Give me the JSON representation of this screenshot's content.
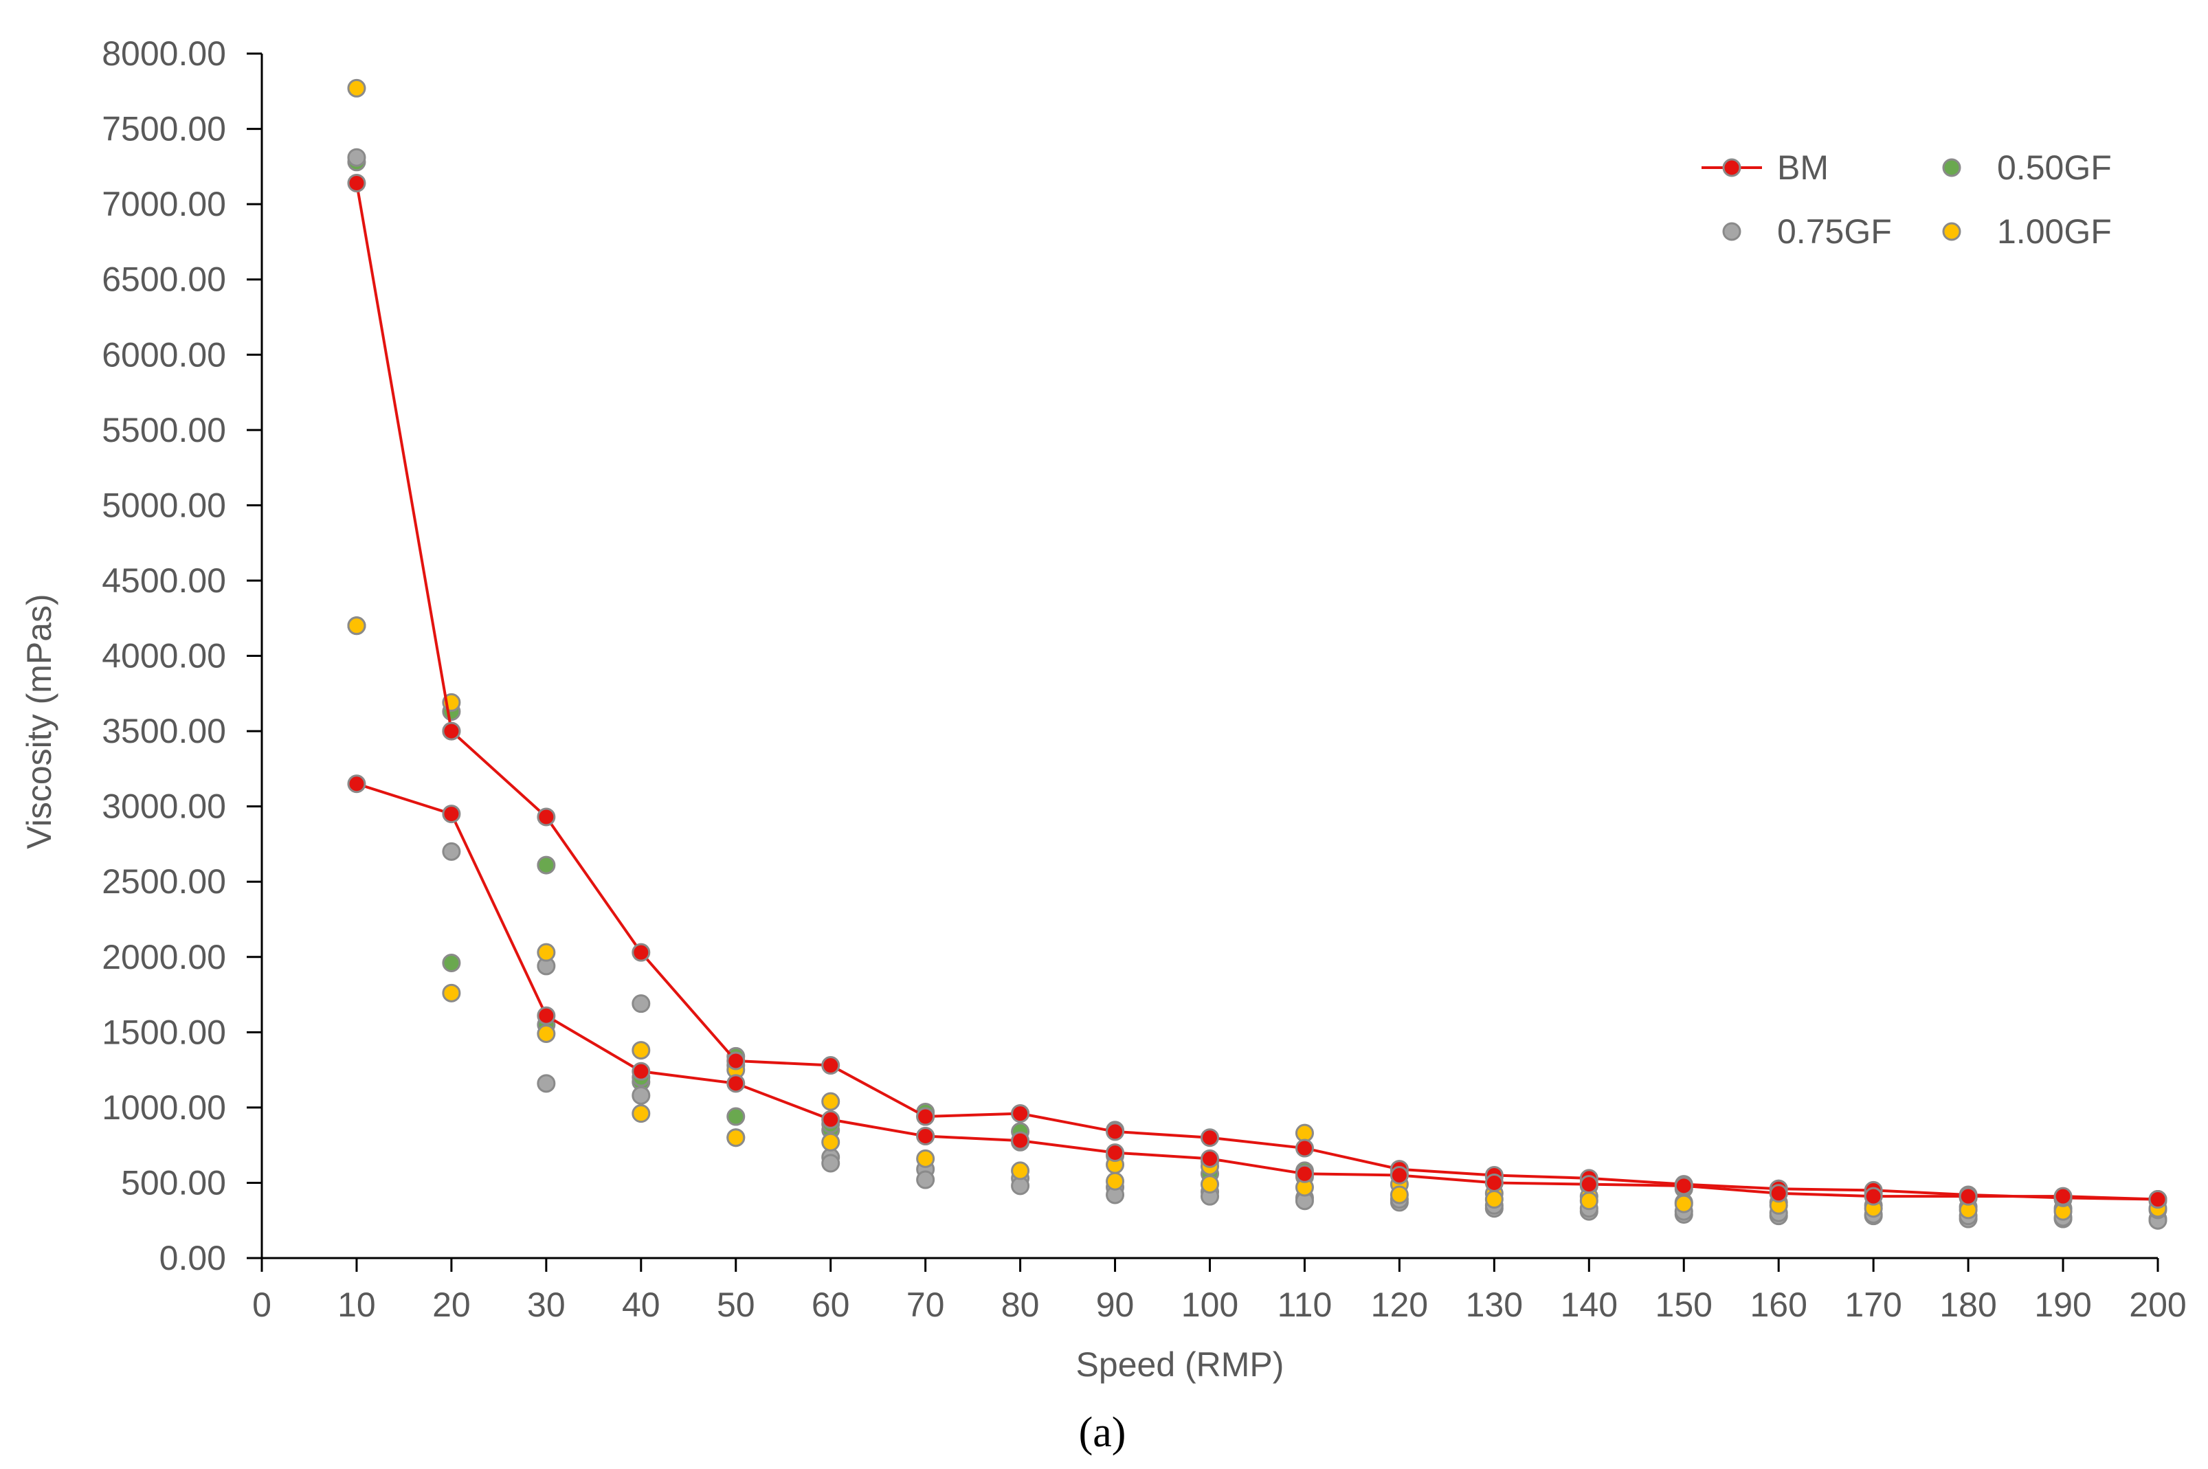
{
  "chart_data": {
    "type": "scatter",
    "xlabel": "Speed (RMP)",
    "ylabel": "Viscosity (mPas)",
    "caption": "(a)",
    "xlim": [
      0,
      200
    ],
    "ylim": [
      0,
      8000
    ],
    "x_ticks": [
      0,
      10,
      20,
      30,
      40,
      50,
      60,
      70,
      80,
      90,
      100,
      110,
      120,
      130,
      140,
      150,
      160,
      170,
      180,
      190,
      200
    ],
    "x_tick_labels": [
      "0",
      "10",
      "20",
      "30",
      "40",
      "50",
      "60",
      "70",
      "80",
      "90",
      "100",
      "110",
      "120",
      "130",
      "140",
      "150",
      "160",
      "170",
      "180",
      "190",
      "200"
    ],
    "y_ticks": [
      0,
      500,
      1000,
      1500,
      2000,
      2500,
      3000,
      3500,
      4000,
      4500,
      5000,
      5500,
      6000,
      6500,
      7000,
      7500,
      8000
    ],
    "y_tick_labels": [
      "0.00",
      "500.00",
      "1000.00",
      "1500.00",
      "2000.00",
      "2500.00",
      "3000.00",
      "3500.00",
      "4000.00",
      "4500.00",
      "5000.00",
      "5500.00",
      "6000.00",
      "6500.00",
      "7000.00",
      "7500.00",
      "8000.00"
    ],
    "grid": false,
    "legend": {
      "position": "top-right",
      "columns": 2
    },
    "colors": {
      "BM": "#e3130f",
      "0.50GF": "#6aa84f",
      "0.75GF": "#a6a6a6",
      "1.00GF": "#ffc000",
      "marker_edge": "#8a8a8a",
      "axis": "#000000"
    },
    "series": [
      {
        "name": "0.50GF",
        "legend_index": 1,
        "mode": "markers",
        "x": [
          10,
          20,
          30,
          40,
          50,
          60,
          70,
          80,
          90,
          100,
          110,
          120,
          130,
          140,
          150,
          160,
          170,
          180,
          190,
          200,
          10,
          20,
          30,
          40,
          50,
          60,
          70,
          80,
          90,
          100,
          110,
          120,
          130,
          140,
          150,
          160,
          170,
          180,
          190,
          200
        ],
        "y": [
          7280,
          3630,
          2610,
          1170,
          1340,
          850,
          970,
          840,
          850,
          640,
          580,
          590,
          540,
          500,
          480,
          460,
          430,
          410,
          400,
          390,
          4200,
          1960,
          1550,
          1200,
          940,
          890,
          810,
          770,
          680,
          560,
          540,
          560,
          500,
          480,
          460,
          430,
          410,
          400,
          390,
          380
        ]
      },
      {
        "name": "0.75GF",
        "legend_index": 2,
        "mode": "markers",
        "x": [
          10,
          20,
          30,
          40,
          50,
          60,
          70,
          80,
          90,
          100,
          110,
          120,
          130,
          140,
          150,
          160,
          170,
          180,
          190,
          200,
          10,
          20,
          30,
          40,
          50,
          60,
          70,
          80,
          90,
          100,
          110,
          120,
          130,
          140,
          150,
          160,
          170,
          180,
          190,
          200
        ],
        "y": [
          7310,
          3500,
          1940,
          1690,
          1280,
          670,
          590,
          530,
          470,
          440,
          400,
          370,
          330,
          310,
          290,
          280,
          280,
          260,
          260,
          260,
          4200,
          2700,
          1160,
          1080,
          800,
          630,
          520,
          480,
          420,
          410,
          380,
          390,
          350,
          330,
          310,
          300,
          290,
          280,
          270,
          250
        ]
      },
      {
        "name": "1.00GF",
        "legend_index": 3,
        "mode": "markers",
        "x": [
          10,
          20,
          30,
          40,
          50,
          60,
          70,
          80,
          90,
          100,
          110,
          120,
          130,
          140,
          150,
          160,
          170,
          180,
          190,
          200,
          10,
          20,
          30,
          40,
          50,
          60,
          70,
          80,
          90,
          100,
          110,
          120,
          130,
          140,
          150,
          160,
          170,
          180,
          190,
          200
        ],
        "y": [
          7770,
          3690,
          2030,
          1380,
          1250,
          1040,
          940,
          960,
          620,
          610,
          830,
          490,
          430,
          410,
          370,
          370,
          350,
          340,
          330,
          320,
          4200,
          1760,
          1490,
          960,
          800,
          770,
          660,
          580,
          510,
          490,
          470,
          420,
          390,
          380,
          360,
          350,
          330,
          320,
          310,
          330
        ]
      },
      {
        "name": "BM",
        "legend_index": 0,
        "mode": "lines+markers",
        "x": [
          10,
          20,
          30,
          40,
          50,
          60,
          70,
          80,
          90,
          100,
          110,
          120,
          130,
          140,
          150,
          160,
          170,
          180,
          190,
          200
        ],
        "y": [
          7140,
          3500,
          2930,
          2030,
          1310,
          1280,
          940,
          960,
          840,
          800,
          730,
          590,
          550,
          530,
          490,
          460,
          450,
          420,
          400,
          390
        ]
      },
      {
        "name": "BM",
        "legend_index": -1,
        "mode": "lines+markers",
        "x": [
          10,
          20,
          30,
          40,
          50,
          60,
          70,
          80,
          90,
          100,
          110,
          120,
          130,
          140,
          150,
          160,
          170,
          180,
          190,
          200
        ],
        "y": [
          3150,
          2950,
          1610,
          1240,
          1160,
          920,
          810,
          780,
          700,
          660,
          560,
          550,
          500,
          490,
          480,
          430,
          410,
          410,
          410,
          390
        ]
      }
    ]
  }
}
